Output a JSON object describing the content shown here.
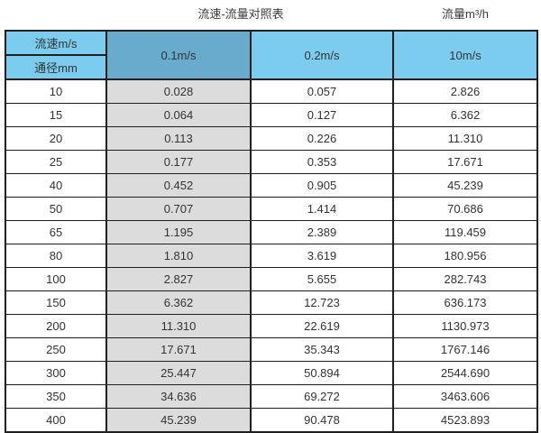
{
  "header": {
    "title": "流速-流量对照表",
    "unit_label": "流量m³/h"
  },
  "colors": {
    "header_blue": "#7cccef",
    "header_blue_dark": "#68abcc",
    "column_gray": "#dcdcdc",
    "border": "#1f1f1f",
    "text": "#333333"
  },
  "table": {
    "velocity_header": "流速m/s",
    "diameter_header": "通径mm",
    "columns": [
      "0.1m/s",
      "0.2m/s",
      "10m/s"
    ],
    "rows": [
      {
        "diameter": "10",
        "values": [
          "0.028",
          "0.057",
          "2.826"
        ]
      },
      {
        "diameter": "15",
        "values": [
          "0.064",
          "0.127",
          "6.362"
        ]
      },
      {
        "diameter": "20",
        "values": [
          "0.113",
          "0.226",
          "11.310"
        ]
      },
      {
        "diameter": "25",
        "values": [
          "0.177",
          "0.353",
          "17.671"
        ]
      },
      {
        "diameter": "40",
        "values": [
          "0.452",
          "0.905",
          "45.239"
        ]
      },
      {
        "diameter": "50",
        "values": [
          "0.707",
          "1.414",
          "70.686"
        ]
      },
      {
        "diameter": "65",
        "values": [
          "1.195",
          "2.389",
          "119.459"
        ]
      },
      {
        "diameter": "80",
        "values": [
          "1.810",
          "3.619",
          "180.956"
        ]
      },
      {
        "diameter": "100",
        "values": [
          "2.827",
          "5.655",
          "282.743"
        ]
      },
      {
        "diameter": "150",
        "values": [
          "6.362",
          "12.723",
          "636.173"
        ]
      },
      {
        "diameter": "200",
        "values": [
          "11.310",
          "22.619",
          "1130.973"
        ]
      },
      {
        "diameter": "250",
        "values": [
          "17.671",
          "35.343",
          "1767.146"
        ]
      },
      {
        "diameter": "300",
        "values": [
          "25.447",
          "50.894",
          "2544.690"
        ]
      },
      {
        "diameter": "350",
        "values": [
          "34.636",
          "69.272",
          "3463.606"
        ]
      },
      {
        "diameter": "400",
        "values": [
          "45.239",
          "90.478",
          "4523.893"
        ]
      }
    ]
  }
}
